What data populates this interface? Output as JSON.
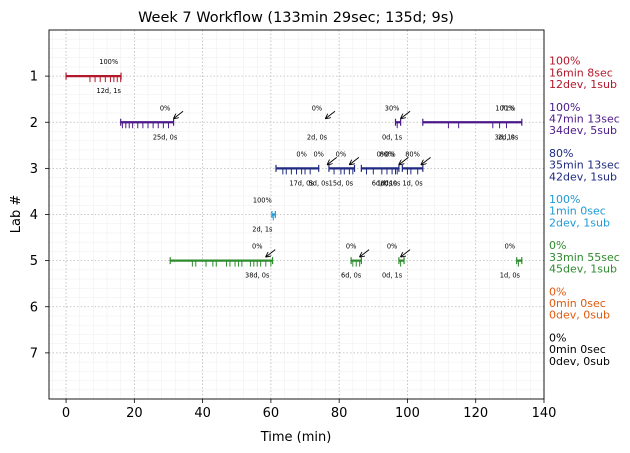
{
  "chart_data": {
    "type": "timeline",
    "title": "Week 7 Workflow (133min 29sec; 135d; 9s)",
    "xlabel": "Time (min)",
    "ylabel": "Lab #",
    "xlim": [
      -5,
      140
    ],
    "ylim": [
      8,
      0
    ],
    "xticks": [
      0,
      20,
      40,
      60,
      80,
      100,
      120,
      140
    ],
    "xtick_labels": [
      "0",
      "20",
      "40",
      "60",
      "80",
      "100",
      "120",
      "140"
    ],
    "yticks": [
      1,
      2,
      3,
      4,
      5,
      6,
      7
    ],
    "ytick_labels": [
      "1",
      "2",
      "3",
      "4",
      "5",
      "6",
      "7"
    ],
    "grid": true,
    "labs": [
      {
        "lab": 1,
        "color": "#b2182b",
        "segments": [
          [
            0,
            16.1
          ]
        ],
        "events": [
          7,
          8.5,
          10,
          11.5,
          13,
          14,
          15,
          16
        ],
        "annotations": [
          {
            "x": 12.5,
            "pct": "100%",
            "dev": "12d, 1s",
            "arrow": false
          }
        ],
        "summary": [
          "100%",
          "16min 8sec",
          "12dev, 1sub"
        ]
      },
      {
        "lab": 2,
        "color": "#4b1a8a",
        "segments": [
          [
            16,
            31.5
          ],
          [
            96.5,
            98
          ],
          [
            104.5,
            133.5
          ]
        ],
        "events": [
          16.5,
          17.5,
          18.5,
          19.5,
          21,
          22.5,
          24,
          25.5,
          27,
          28.5,
          30,
          97,
          112,
          115,
          125,
          127,
          129
        ],
        "annotations": [
          {
            "x": 29,
            "pct": "0%",
            "dev": "25d, 0s",
            "arrow": true
          },
          {
            "x": 73.5,
            "pct": "0%",
            "dev": "2d, 0s",
            "arrow": true
          },
          {
            "x": 95.5,
            "pct": "30%",
            "dev": "0d, 1s",
            "arrow": true
          },
          {
            "x": 128.5,
            "pct": "100%",
            "dev": "3d, 1s",
            "arrow": false
          },
          {
            "x": 129.5,
            "pct": "71%",
            "dev": "2d, 0s",
            "arrow": false
          }
        ],
        "summary": [
          "100%",
          "47min 13sec",
          "34dev, 5sub"
        ]
      },
      {
        "lab": 3,
        "color": "#1f2a80",
        "segments": [
          [
            61.5,
            74
          ],
          [
            77,
            84.5
          ],
          [
            86.5,
            97.5
          ],
          [
            98.5,
            104.5
          ]
        ],
        "events": [
          63.5,
          64.5,
          66,
          67.5,
          69,
          70,
          71.5,
          78.5,
          80.5,
          81.5,
          83,
          84,
          88,
          90,
          92.5,
          94,
          95.5,
          96.5,
          97,
          100,
          101,
          103
        ],
        "annotations": [
          {
            "x": 69,
            "pct": "0%",
            "dev": "17d, 0s",
            "arrow": false
          },
          {
            "x": 74,
            "pct": "0%",
            "dev": "5d, 0s",
            "arrow": true
          },
          {
            "x": 80.5,
            "pct": "0%",
            "dev": "15d, 0s",
            "arrow": true
          },
          {
            "x": 92.5,
            "pct": "0%",
            "dev": "6d, 0s",
            "arrow": false
          },
          {
            "x": 94,
            "pct": "80%",
            "dev": "1d, 1s",
            "arrow": false
          },
          {
            "x": 95,
            "pct": "0%",
            "dev": "8d, 0s",
            "arrow": true
          },
          {
            "x": 101.5,
            "pct": "80%",
            "dev": "1d, 0s",
            "arrow": true
          }
        ],
        "summary": [
          "80%",
          "35min 13sec",
          "42dev, 1sub"
        ]
      },
      {
        "lab": 4,
        "color": "#1f9ad6",
        "segments": [
          [
            60.3,
            61.3
          ]
        ],
        "events": [
          60.7
        ],
        "annotations": [
          {
            "x": 57.5,
            "pct": "100%",
            "dev": "2d, 1s",
            "arrow": false
          }
        ],
        "summary": [
          "100%",
          "1min 0sec",
          "2dev, 1sub"
        ]
      },
      {
        "lab": 5,
        "color": "#2e8b2e",
        "segments": [
          [
            30.5,
            60.5
          ],
          [
            83.5,
            86.5
          ],
          [
            97.5,
            99
          ],
          [
            132,
            133.5
          ]
        ],
        "events": [
          37,
          38,
          41,
          43,
          44,
          47,
          48,
          49.5,
          50.5,
          51.5,
          54,
          55,
          56,
          57,
          58.5,
          60,
          84,
          85,
          86,
          98,
          132.5
        ],
        "annotations": [
          {
            "x": 56,
            "pct": "0%",
            "dev": "38d, 0s",
            "arrow": true
          },
          {
            "x": 83.5,
            "pct": "0%",
            "dev": "6d, 0s",
            "arrow": true
          },
          {
            "x": 95.5,
            "pct": "0%",
            "dev": "0d, 1s",
            "arrow": true
          },
          {
            "x": 130,
            "pct": "0%",
            "dev": "1d, 0s",
            "arrow": false
          }
        ],
        "summary": [
          "0%",
          "33min 55sec",
          "45dev, 1sub"
        ]
      },
      {
        "lab": 6,
        "color": "#e05a10",
        "segments": [],
        "events": [],
        "annotations": [],
        "summary": [
          "0%",
          "0min 0sec",
          "0dev, 0sub"
        ]
      },
      {
        "lab": 7,
        "color": "#000000",
        "segments": [],
        "events": [],
        "annotations": [],
        "summary": [
          "0%",
          "0min 0sec",
          "0dev, 0sub"
        ]
      }
    ]
  }
}
